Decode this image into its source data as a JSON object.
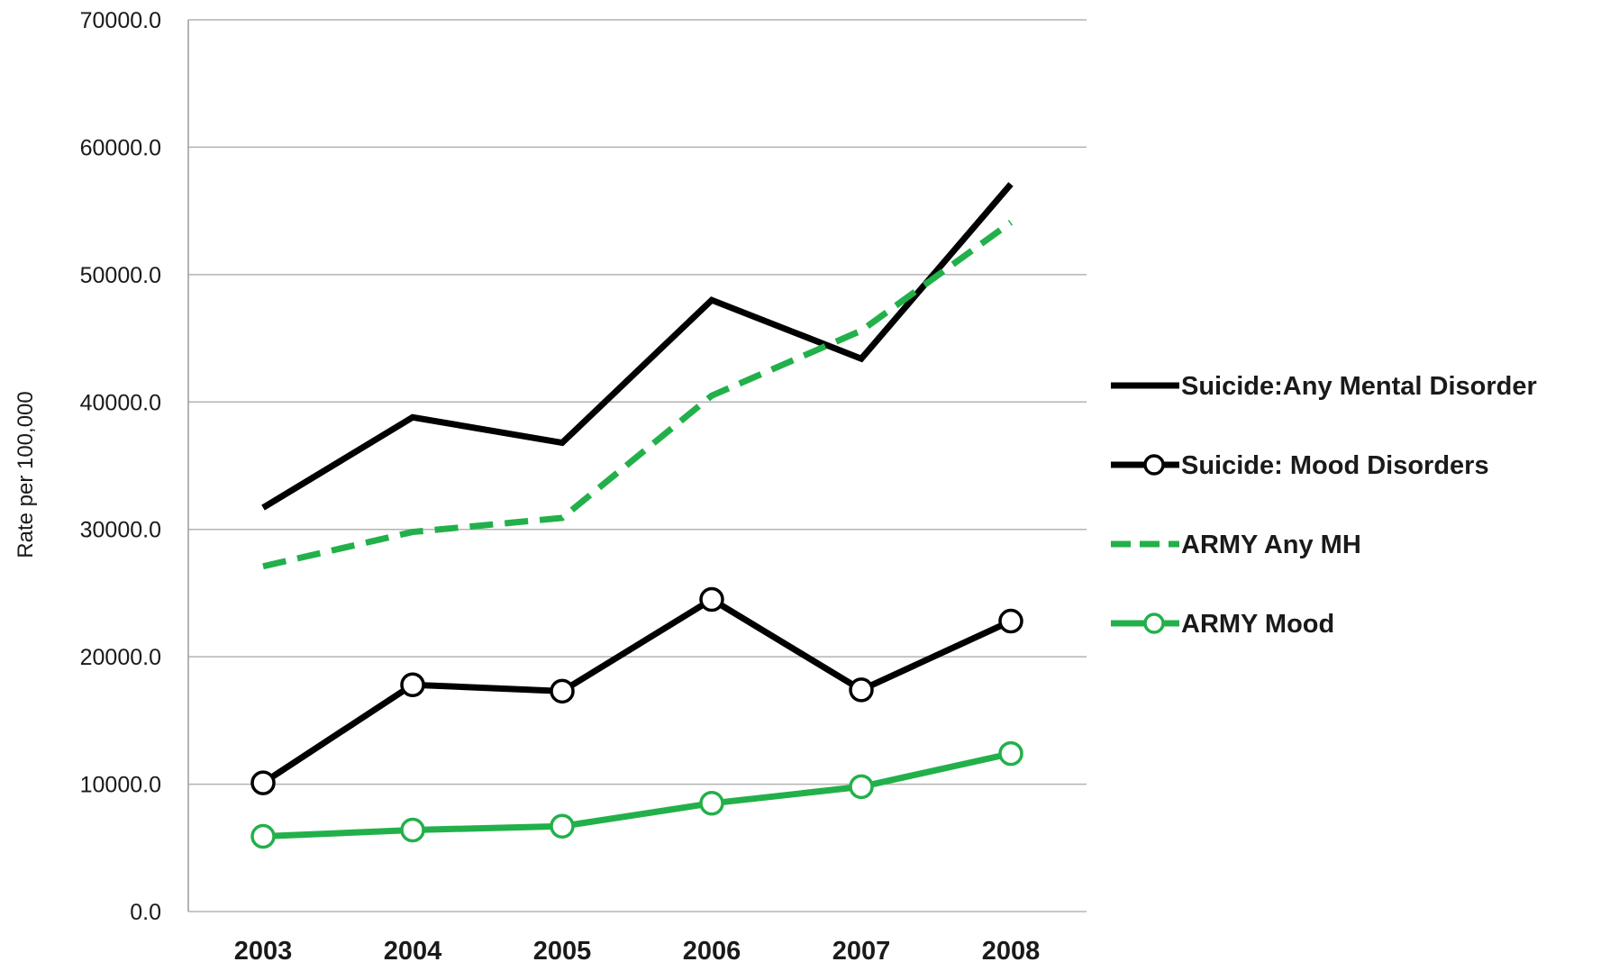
{
  "chart_data": {
    "type": "line",
    "title": "",
    "xlabel": "",
    "ylabel": "Rate per 100,000",
    "categories": [
      "2003",
      "2004",
      "2005",
      "2006",
      "2007",
      "2008"
    ],
    "ylim": [
      0,
      70000
    ],
    "yticks": [
      0,
      10000,
      20000,
      30000,
      40000,
      50000,
      60000,
      70000
    ],
    "ytick_labels": [
      "0.0",
      "10000.0",
      "20000.0",
      "30000.0",
      "40000.0",
      "50000.0",
      "60000.0",
      "70000.0"
    ],
    "grid": true,
    "legend_position": "right",
    "series": [
      {
        "name": "Suicide:Any Mental Disorder",
        "values": [
          31700,
          38800,
          36800,
          48000,
          43400,
          57100
        ],
        "color": "#000000",
        "style": "solid",
        "marker": "none"
      },
      {
        "name": "Suicide: Mood Disorders",
        "values": [
          10100,
          17800,
          17300,
          24500,
          17400,
          22800
        ],
        "color": "#000000",
        "style": "solid",
        "marker": "open-circle"
      },
      {
        "name": "ARMY Any MH",
        "values": [
          27100,
          29800,
          30900,
          40500,
          45600,
          54100
        ],
        "color": "#22b04a",
        "style": "dashed",
        "marker": "none"
      },
      {
        "name": "ARMY Mood",
        "values": [
          5900,
          6400,
          6700,
          8500,
          9800,
          12400
        ],
        "color": "#22b04a",
        "style": "solid",
        "marker": "open-circle"
      }
    ]
  }
}
